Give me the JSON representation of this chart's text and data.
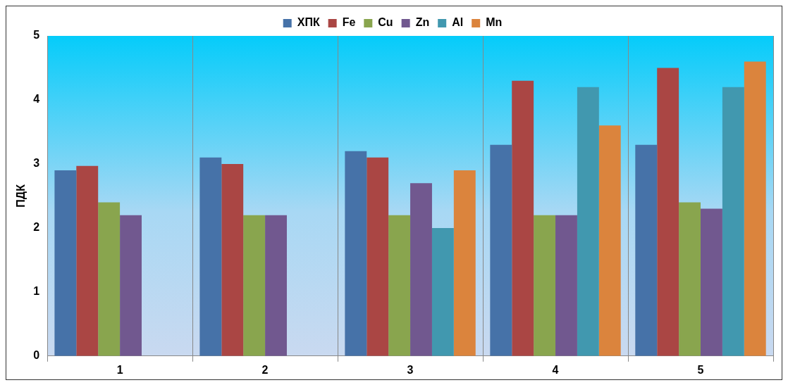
{
  "chart_data": {
    "type": "bar",
    "ylabel": "ПДК",
    "categories": [
      "1",
      "2",
      "3",
      "4",
      "5"
    ],
    "series": [
      {
        "name": "ХПК",
        "color": "#4672a8",
        "values": [
          2.9,
          3.1,
          3.2,
          3.3,
          3.3
        ]
      },
      {
        "name": "Fe",
        "color": "#aa4644",
        "values": [
          2.97,
          3.0,
          3.1,
          4.3,
          4.5
        ]
      },
      {
        "name": "Cu",
        "color": "#89a54e",
        "values": [
          2.4,
          2.2,
          2.2,
          2.2,
          2.4
        ]
      },
      {
        "name": "Zn",
        "color": "#71588f",
        "values": [
          2.2,
          2.2,
          2.7,
          2.2,
          2.3
        ]
      },
      {
        "name": "Al",
        "color": "#4198af",
        "values": [
          null,
          null,
          2.0,
          4.2,
          4.2
        ]
      },
      {
        "name": "Mn",
        "color": "#db843d",
        "values": [
          null,
          null,
          2.9,
          3.6,
          4.6
        ]
      }
    ],
    "ylim": [
      0,
      5
    ],
    "yticks": [
      0,
      1,
      2,
      3,
      4,
      5
    ],
    "grid": "x",
    "legend": "top"
  }
}
